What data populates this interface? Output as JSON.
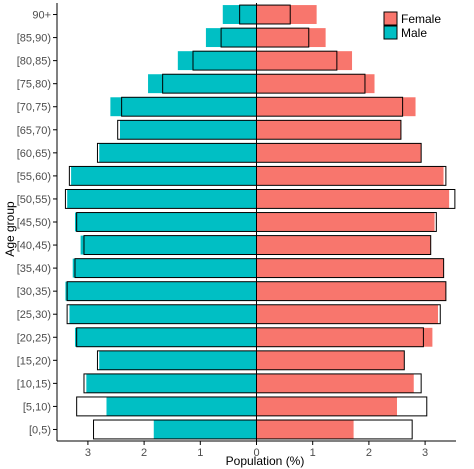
{
  "chart_data": {
    "type": "bar",
    "orientation": "horizontal",
    "subtype": "population-pyramid",
    "categories": [
      "90+",
      "[85,90)",
      "[80,85)",
      "[75,80)",
      "[70,75)",
      "[65,70)",
      "[60,65)",
      "[55,60)",
      "[50,55)",
      "[45,50)",
      "[40,45)",
      "[35,40)",
      "[30,35)",
      "[25,30)",
      "[20,25)",
      "[15,20)",
      "[10,15)",
      "[5,10)",
      "[0,5)"
    ],
    "series": [
      {
        "name": "Female",
        "color": "#F8766D",
        "values": [
          1.07,
          1.23,
          1.7,
          2.1,
          2.83,
          2.57,
          2.93,
          3.33,
          3.43,
          3.17,
          3.1,
          3.33,
          3.37,
          3.23,
          3.13,
          2.63,
          2.8,
          2.5,
          1.73
        ]
      },
      {
        "name": "Male",
        "color": "#00BFC4",
        "values": [
          0.6,
          0.9,
          1.4,
          1.93,
          2.6,
          2.43,
          2.8,
          3.3,
          3.37,
          3.23,
          3.13,
          3.27,
          3.4,
          3.33,
          3.23,
          2.8,
          3.03,
          2.67,
          1.83
        ]
      }
    ],
    "reference_outline": {
      "female": [
        0.6,
        0.93,
        1.43,
        1.93,
        2.6,
        2.57,
        2.93,
        3.37,
        3.53,
        3.2,
        3.1,
        3.33,
        3.37,
        3.27,
        2.97,
        2.63,
        2.93,
        3.03,
        2.77
      ],
      "male": [
        0.3,
        0.63,
        1.13,
        1.67,
        2.4,
        2.47,
        2.83,
        3.33,
        3.4,
        3.2,
        3.07,
        3.23,
        3.37,
        3.37,
        3.2,
        2.83,
        3.07,
        3.2,
        2.9
      ],
      "fill": "#ffffff",
      "stroke": "#000000"
    },
    "xlabel": "Population (%)",
    "ylabel": "Age group",
    "xlim": [
      -3.55,
      3.55
    ],
    "xticks": [
      {
        "value": -3,
        "label": "3"
      },
      {
        "value": -2,
        "label": "2"
      },
      {
        "value": -1,
        "label": "1"
      },
      {
        "value": 0,
        "label": "0"
      },
      {
        "value": 1,
        "label": "1"
      },
      {
        "value": 2,
        "label": "2"
      },
      {
        "value": 3,
        "label": "3"
      }
    ],
    "grid": false,
    "legend": {
      "position": "top-right",
      "entries": [
        "Female",
        "Male"
      ]
    }
  }
}
